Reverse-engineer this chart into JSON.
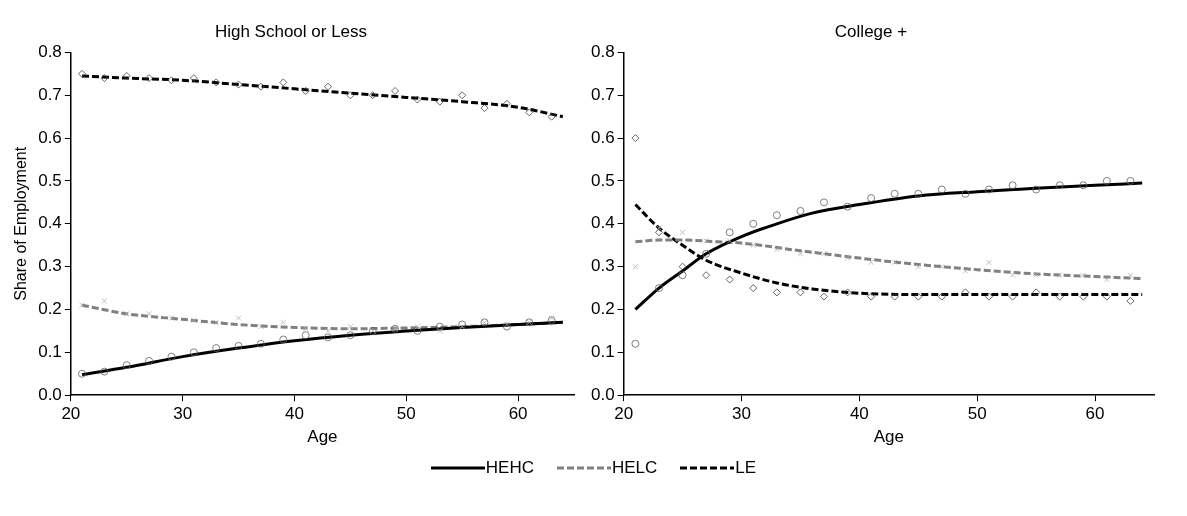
{
  "chart_data": [
    {
      "type": "scatter",
      "title": "High School or Less",
      "xlabel": "Age",
      "ylabel": "Share of Employment",
      "xlim": [
        20,
        65
      ],
      "xticks": [
        20,
        30,
        40,
        50,
        60
      ],
      "ylim": [
        0,
        0.8
      ],
      "yticks": [
        {
          "value": 0,
          "label": "0.0"
        },
        0.1,
        0.2,
        0.3,
        0.4,
        0.5,
        0.6,
        0.7,
        0.8
      ],
      "grid": false,
      "legend": "bottom",
      "series": [
        {
          "type": "scatter",
          "marker": "diamond",
          "color": "#404040",
          "x": [
            21,
            23,
            25,
            27,
            29,
            31,
            33,
            35,
            37,
            39,
            41,
            43,
            45,
            47,
            49,
            51,
            53,
            55,
            57,
            59,
            61,
            63
          ],
          "values": [
            0.75,
            0.74,
            0.745,
            0.74,
            0.735,
            0.74,
            0.73,
            0.725,
            0.72,
            0.73,
            0.71,
            0.72,
            0.7,
            0.7,
            0.71,
            0.69,
            0.685,
            0.7,
            0.67,
            0.68,
            0.66,
            0.65
          ]
        },
        {
          "type": "scatter",
          "marker": "cross",
          "color": "#b0b0b0",
          "x": [
            21,
            23,
            25,
            27,
            29,
            31,
            33,
            35,
            37,
            39,
            41,
            43,
            45,
            47,
            49,
            51,
            53,
            55,
            57,
            59,
            61,
            63
          ],
          "values": [
            0.21,
            0.22,
            0.19,
            0.19,
            0.18,
            0.175,
            0.17,
            0.18,
            0.16,
            0.17,
            0.155,
            0.15,
            0.16,
            0.15,
            0.155,
            0.16,
            0.15,
            0.16,
            0.17,
            0.165,
            0.17,
            0.18
          ]
        },
        {
          "type": "scatter",
          "marker": "circle",
          "color": "#606060",
          "x": [
            21,
            23,
            25,
            27,
            29,
            31,
            33,
            35,
            37,
            39,
            41,
            43,
            45,
            47,
            49,
            51,
            53,
            55,
            57,
            59,
            61,
            63
          ],
          "values": [
            0.05,
            0.055,
            0.07,
            0.08,
            0.09,
            0.1,
            0.11,
            0.115,
            0.12,
            0.13,
            0.14,
            0.135,
            0.14,
            0.15,
            0.155,
            0.15,
            0.16,
            0.165,
            0.17,
            0.16,
            0.17,
            0.175
          ]
        },
        {
          "type": "line",
          "name": "HEHC",
          "color": "#000000",
          "line_style": "solid",
          "marker": "none",
          "x": [
            21,
            25,
            30,
            35,
            40,
            45,
            50,
            55,
            60,
            64
          ],
          "values": [
            0.048,
            0.065,
            0.09,
            0.11,
            0.127,
            0.14,
            0.15,
            0.158,
            0.165,
            0.17
          ]
        },
        {
          "type": "line",
          "name": "HELC",
          "color": "#808080",
          "line_style": "dashed",
          "marker": "none",
          "x": [
            21,
            25,
            30,
            35,
            40,
            45,
            50,
            55,
            60,
            64
          ],
          "values": [
            0.21,
            0.19,
            0.177,
            0.165,
            0.158,
            0.155,
            0.157,
            0.16,
            0.165,
            0.17
          ]
        },
        {
          "type": "line",
          "name": "LE",
          "color": "#000000",
          "line_style": "dashed",
          "marker": "none",
          "x": [
            21,
            25,
            30,
            35,
            40,
            45,
            50,
            55,
            60,
            64
          ],
          "values": [
            0.745,
            0.74,
            0.735,
            0.725,
            0.715,
            0.705,
            0.695,
            0.685,
            0.672,
            0.65
          ]
        }
      ]
    },
    {
      "type": "scatter",
      "title": "College +",
      "xlabel": "Age",
      "xlim": [
        20,
        65
      ],
      "xticks": [
        20,
        30,
        40,
        50,
        60
      ],
      "ylim": [
        0,
        0.8
      ],
      "yticks": [
        {
          "value": 0,
          "label": "0.0"
        },
        0.1,
        0.2,
        0.3,
        0.4,
        0.5,
        0.6,
        0.7,
        0.8
      ],
      "grid": false,
      "legend": "bottom",
      "series": [
        {
          "type": "scatter",
          "marker": "diamond",
          "color": "#404040",
          "x": [
            21,
            23,
            25,
            27,
            29,
            31,
            33,
            35,
            37,
            39,
            41,
            43,
            45,
            47,
            49,
            51,
            53,
            55,
            57,
            59,
            61,
            63
          ],
          "values": [
            0.6,
            0.38,
            0.3,
            0.28,
            0.27,
            0.25,
            0.24,
            0.24,
            0.23,
            0.24,
            0.23,
            0.23,
            0.23,
            0.23,
            0.24,
            0.23,
            0.23,
            0.24,
            0.23,
            0.23,
            0.23,
            0.22
          ]
        },
        {
          "type": "scatter",
          "marker": "cross",
          "color": "#b0b0b0",
          "x": [
            21,
            23,
            25,
            27,
            29,
            31,
            33,
            35,
            37,
            39,
            41,
            43,
            45,
            47,
            49,
            51,
            53,
            55,
            57,
            59,
            61,
            63
          ],
          "values": [
            0.3,
            0.39,
            0.38,
            0.36,
            0.36,
            0.35,
            0.34,
            0.33,
            0.33,
            0.32,
            0.31,
            0.31,
            0.3,
            0.3,
            0.29,
            0.31,
            0.28,
            0.28,
            0.28,
            0.28,
            0.27,
            0.28
          ]
        },
        {
          "type": "scatter",
          "marker": "circle",
          "color": "#606060",
          "x": [
            21,
            23,
            25,
            27,
            29,
            31,
            33,
            35,
            37,
            39,
            41,
            43,
            45,
            47,
            49,
            51,
            53,
            55,
            57,
            59,
            61,
            63
          ],
          "values": [
            0.12,
            0.25,
            0.28,
            0.33,
            0.38,
            0.4,
            0.42,
            0.43,
            0.45,
            0.44,
            0.46,
            0.47,
            0.47,
            0.48,
            0.47,
            0.48,
            0.49,
            0.48,
            0.49,
            0.49,
            0.5,
            0.5
          ]
        },
        {
          "type": "line",
          "name": "HEHC",
          "color": "#000000",
          "line_style": "solid",
          "marker": "none",
          "x": [
            21,
            23,
            25,
            27,
            30,
            33,
            36,
            40,
            45,
            50,
            55,
            60,
            64
          ],
          "values": [
            0.2,
            0.25,
            0.29,
            0.33,
            0.37,
            0.4,
            0.425,
            0.445,
            0.465,
            0.475,
            0.483,
            0.49,
            0.495
          ]
        },
        {
          "type": "line",
          "name": "HELC",
          "color": "#808080",
          "line_style": "dashed",
          "marker": "none",
          "x": [
            21,
            23,
            25,
            28,
            30,
            35,
            40,
            45,
            50,
            55,
            60,
            64
          ],
          "values": [
            0.358,
            0.362,
            0.362,
            0.358,
            0.355,
            0.337,
            0.32,
            0.305,
            0.293,
            0.283,
            0.277,
            0.272
          ]
        },
        {
          "type": "line",
          "name": "LE",
          "color": "#000000",
          "line_style": "dashed",
          "marker": "none",
          "x": [
            21,
            23,
            25,
            27,
            30,
            33,
            36,
            40,
            45,
            50,
            55,
            60,
            64
          ],
          "values": [
            0.445,
            0.39,
            0.35,
            0.315,
            0.285,
            0.262,
            0.248,
            0.238,
            0.235,
            0.235,
            0.235,
            0.235,
            0.235
          ]
        }
      ]
    }
  ]
}
